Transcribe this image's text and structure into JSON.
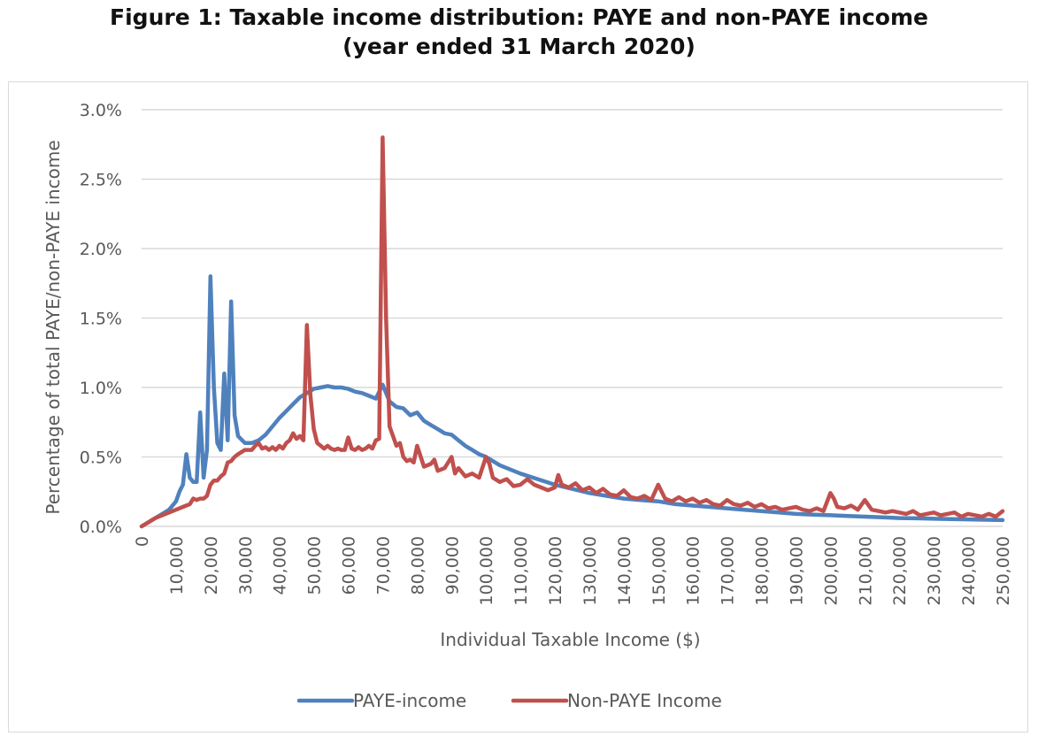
{
  "title": {
    "line1": "Figure 1: Taxable income distribution: PAYE and non-PAYE income",
    "line2": "(year ended 31 March 2020)"
  },
  "chart_data": {
    "type": "line",
    "title": "Figure 1: Taxable income distribution: PAYE and non-PAYE income (year ended 31 March 2020)",
    "xlabel": "Individual Taxable Income ($)",
    "ylabel": "Percentage of total PAYE/non-PAYE income",
    "xlim": [
      0,
      250000
    ],
    "ylim": [
      0,
      3.0
    ],
    "grid": true,
    "legend_position": "bottom",
    "x_ticks": [
      "0",
      "10,000",
      "20,000",
      "30,000",
      "40,000",
      "50,000",
      "60,000",
      "70,000",
      "80,000",
      "90,000",
      "100,000",
      "110,000",
      "120,000",
      "130,000",
      "140,000",
      "150,000",
      "160,000",
      "170,000",
      "180,000",
      "190,000",
      "200,000",
      "210,000",
      "220,000",
      "230,000",
      "240,000",
      "250,000"
    ],
    "y_ticks": [
      "0.0%",
      "0.5%",
      "1.0%",
      "1.5%",
      "2.0%",
      "2.5%",
      "3.0%"
    ],
    "y_tick_values": [
      0,
      0.5,
      1.0,
      1.5,
      2.0,
      2.5,
      3.0
    ],
    "series": [
      {
        "name": "PAYE-income",
        "color": "#4f81bd",
        "points": [
          [
            0,
            0
          ],
          [
            2000,
            0.03
          ],
          [
            4000,
            0.06
          ],
          [
            6000,
            0.09
          ],
          [
            8000,
            0.12
          ],
          [
            10000,
            0.18
          ],
          [
            11000,
            0.25
          ],
          [
            12000,
            0.3
          ],
          [
            13000,
            0.52
          ],
          [
            14000,
            0.35
          ],
          [
            15000,
            0.32
          ],
          [
            16000,
            0.32
          ],
          [
            17000,
            0.82
          ],
          [
            18000,
            0.35
          ],
          [
            19000,
            0.55
          ],
          [
            20000,
            1.8
          ],
          [
            21000,
            1.0
          ],
          [
            22000,
            0.6
          ],
          [
            23000,
            0.55
          ],
          [
            24000,
            1.1
          ],
          [
            25000,
            0.62
          ],
          [
            26000,
            1.62
          ],
          [
            27000,
            0.8
          ],
          [
            28000,
            0.65
          ],
          [
            30000,
            0.6
          ],
          [
            32000,
            0.6
          ],
          [
            34000,
            0.62
          ],
          [
            36000,
            0.66
          ],
          [
            38000,
            0.72
          ],
          [
            40000,
            0.78
          ],
          [
            42000,
            0.83
          ],
          [
            44000,
            0.88
          ],
          [
            46000,
            0.93
          ],
          [
            48000,
            0.96
          ],
          [
            50000,
            0.99
          ],
          [
            52000,
            1.0
          ],
          [
            54000,
            1.01
          ],
          [
            56000,
            1.0
          ],
          [
            58000,
            1.0
          ],
          [
            60000,
            0.99
          ],
          [
            62000,
            0.97
          ],
          [
            64000,
            0.96
          ],
          [
            66000,
            0.94
          ],
          [
            68000,
            0.92
          ],
          [
            70000,
            1.02
          ],
          [
            72000,
            0.9
          ],
          [
            74000,
            0.86
          ],
          [
            76000,
            0.85
          ],
          [
            78000,
            0.8
          ],
          [
            80000,
            0.82
          ],
          [
            82000,
            0.76
          ],
          [
            84000,
            0.73
          ],
          [
            86000,
            0.7
          ],
          [
            88000,
            0.67
          ],
          [
            90000,
            0.66
          ],
          [
            92000,
            0.62
          ],
          [
            94000,
            0.58
          ],
          [
            96000,
            0.55
          ],
          [
            98000,
            0.52
          ],
          [
            100000,
            0.5
          ],
          [
            102000,
            0.47
          ],
          [
            104000,
            0.44
          ],
          [
            106000,
            0.42
          ],
          [
            108000,
            0.4
          ],
          [
            110000,
            0.38
          ],
          [
            115000,
            0.34
          ],
          [
            120000,
            0.3
          ],
          [
            125000,
            0.27
          ],
          [
            130000,
            0.24
          ],
          [
            135000,
            0.22
          ],
          [
            140000,
            0.2
          ],
          [
            145000,
            0.19
          ],
          [
            150000,
            0.18
          ],
          [
            155000,
            0.16
          ],
          [
            160000,
            0.15
          ],
          [
            165000,
            0.14
          ],
          [
            170000,
            0.13
          ],
          [
            175000,
            0.12
          ],
          [
            180000,
            0.11
          ],
          [
            185000,
            0.1
          ],
          [
            190000,
            0.09
          ],
          [
            195000,
            0.085
          ],
          [
            200000,
            0.08
          ],
          [
            205000,
            0.075
          ],
          [
            210000,
            0.07
          ],
          [
            215000,
            0.065
          ],
          [
            220000,
            0.06
          ],
          [
            225000,
            0.058
          ],
          [
            230000,
            0.055
          ],
          [
            235000,
            0.052
          ],
          [
            240000,
            0.05
          ],
          [
            245000,
            0.048
          ],
          [
            250000,
            0.045
          ]
        ]
      },
      {
        "name": "Non-PAYE Income",
        "color": "#c0504d",
        "points": [
          [
            0,
            0
          ],
          [
            2000,
            0.03
          ],
          [
            4000,
            0.06
          ],
          [
            6000,
            0.08
          ],
          [
            8000,
            0.1
          ],
          [
            10000,
            0.12
          ],
          [
            12000,
            0.14
          ],
          [
            14000,
            0.16
          ],
          [
            15000,
            0.2
          ],
          [
            16000,
            0.19
          ],
          [
            17000,
            0.2
          ],
          [
            18000,
            0.2
          ],
          [
            19000,
            0.22
          ],
          [
            20000,
            0.3
          ],
          [
            21000,
            0.33
          ],
          [
            22000,
            0.33
          ],
          [
            23000,
            0.36
          ],
          [
            24000,
            0.38
          ],
          [
            25000,
            0.46
          ],
          [
            26000,
            0.47
          ],
          [
            27000,
            0.5
          ],
          [
            28000,
            0.52
          ],
          [
            30000,
            0.55
          ],
          [
            31000,
            0.55
          ],
          [
            32000,
            0.55
          ],
          [
            33000,
            0.58
          ],
          [
            34000,
            0.6
          ],
          [
            35000,
            0.56
          ],
          [
            36000,
            0.57
          ],
          [
            37000,
            0.55
          ],
          [
            38000,
            0.57
          ],
          [
            39000,
            0.55
          ],
          [
            40000,
            0.58
          ],
          [
            41000,
            0.56
          ],
          [
            42000,
            0.6
          ],
          [
            43000,
            0.62
          ],
          [
            44000,
            0.67
          ],
          [
            45000,
            0.63
          ],
          [
            46000,
            0.65
          ],
          [
            47000,
            0.62
          ],
          [
            48000,
            1.45
          ],
          [
            49000,
            0.95
          ],
          [
            50000,
            0.7
          ],
          [
            51000,
            0.6
          ],
          [
            52000,
            0.58
          ],
          [
            53000,
            0.56
          ],
          [
            54000,
            0.58
          ],
          [
            55000,
            0.56
          ],
          [
            56000,
            0.55
          ],
          [
            57000,
            0.56
          ],
          [
            58000,
            0.55
          ],
          [
            59000,
            0.55
          ],
          [
            60000,
            0.64
          ],
          [
            61000,
            0.56
          ],
          [
            62000,
            0.55
          ],
          [
            63000,
            0.57
          ],
          [
            64000,
            0.55
          ],
          [
            65000,
            0.56
          ],
          [
            66000,
            0.58
          ],
          [
            67000,
            0.56
          ],
          [
            68000,
            0.62
          ],
          [
            69000,
            0.63
          ],
          [
            70000,
            2.8
          ],
          [
            71000,
            1.5
          ],
          [
            72000,
            0.72
          ],
          [
            73000,
            0.65
          ],
          [
            74000,
            0.58
          ],
          [
            75000,
            0.6
          ],
          [
            76000,
            0.5
          ],
          [
            77000,
            0.47
          ],
          [
            78000,
            0.48
          ],
          [
            79000,
            0.46
          ],
          [
            80000,
            0.58
          ],
          [
            82000,
            0.43
          ],
          [
            84000,
            0.45
          ],
          [
            85000,
            0.48
          ],
          [
            86000,
            0.4
          ],
          [
            88000,
            0.42
          ],
          [
            90000,
            0.5
          ],
          [
            91000,
            0.38
          ],
          [
            92000,
            0.42
          ],
          [
            94000,
            0.36
          ],
          [
            96000,
            0.38
          ],
          [
            98000,
            0.35
          ],
          [
            100000,
            0.5
          ],
          [
            101000,
            0.45
          ],
          [
            102000,
            0.35
          ],
          [
            104000,
            0.32
          ],
          [
            106000,
            0.34
          ],
          [
            108000,
            0.29
          ],
          [
            110000,
            0.3
          ],
          [
            112000,
            0.34
          ],
          [
            114000,
            0.3
          ],
          [
            116000,
            0.28
          ],
          [
            118000,
            0.26
          ],
          [
            120000,
            0.28
          ],
          [
            121000,
            0.37
          ],
          [
            122000,
            0.3
          ],
          [
            124000,
            0.28
          ],
          [
            126000,
            0.31
          ],
          [
            128000,
            0.26
          ],
          [
            130000,
            0.28
          ],
          [
            132000,
            0.24
          ],
          [
            134000,
            0.27
          ],
          [
            136000,
            0.23
          ],
          [
            138000,
            0.22
          ],
          [
            140000,
            0.26
          ],
          [
            142000,
            0.21
          ],
          [
            144000,
            0.2
          ],
          [
            146000,
            0.22
          ],
          [
            148000,
            0.19
          ],
          [
            150000,
            0.3
          ],
          [
            152000,
            0.2
          ],
          [
            154000,
            0.18
          ],
          [
            156000,
            0.21
          ],
          [
            158000,
            0.18
          ],
          [
            160000,
            0.2
          ],
          [
            162000,
            0.17
          ],
          [
            164000,
            0.19
          ],
          [
            166000,
            0.16
          ],
          [
            168000,
            0.15
          ],
          [
            170000,
            0.19
          ],
          [
            172000,
            0.16
          ],
          [
            174000,
            0.15
          ],
          [
            176000,
            0.17
          ],
          [
            178000,
            0.14
          ],
          [
            180000,
            0.16
          ],
          [
            182000,
            0.13
          ],
          [
            184000,
            0.14
          ],
          [
            186000,
            0.12
          ],
          [
            188000,
            0.13
          ],
          [
            190000,
            0.14
          ],
          [
            192000,
            0.12
          ],
          [
            194000,
            0.11
          ],
          [
            196000,
            0.13
          ],
          [
            198000,
            0.11
          ],
          [
            200000,
            0.24
          ],
          [
            201000,
            0.2
          ],
          [
            202000,
            0.14
          ],
          [
            204000,
            0.13
          ],
          [
            206000,
            0.15
          ],
          [
            208000,
            0.12
          ],
          [
            210000,
            0.19
          ],
          [
            212000,
            0.12
          ],
          [
            214000,
            0.11
          ],
          [
            216000,
            0.1
          ],
          [
            218000,
            0.11
          ],
          [
            220000,
            0.1
          ],
          [
            222000,
            0.09
          ],
          [
            224000,
            0.11
          ],
          [
            226000,
            0.08
          ],
          [
            228000,
            0.09
          ],
          [
            230000,
            0.1
          ],
          [
            232000,
            0.08
          ],
          [
            234000,
            0.09
          ],
          [
            236000,
            0.1
          ],
          [
            238000,
            0.07
          ],
          [
            240000,
            0.09
          ],
          [
            242000,
            0.08
          ],
          [
            244000,
            0.07
          ],
          [
            246000,
            0.09
          ],
          [
            248000,
            0.07
          ],
          [
            250000,
            0.11
          ]
        ]
      }
    ]
  }
}
